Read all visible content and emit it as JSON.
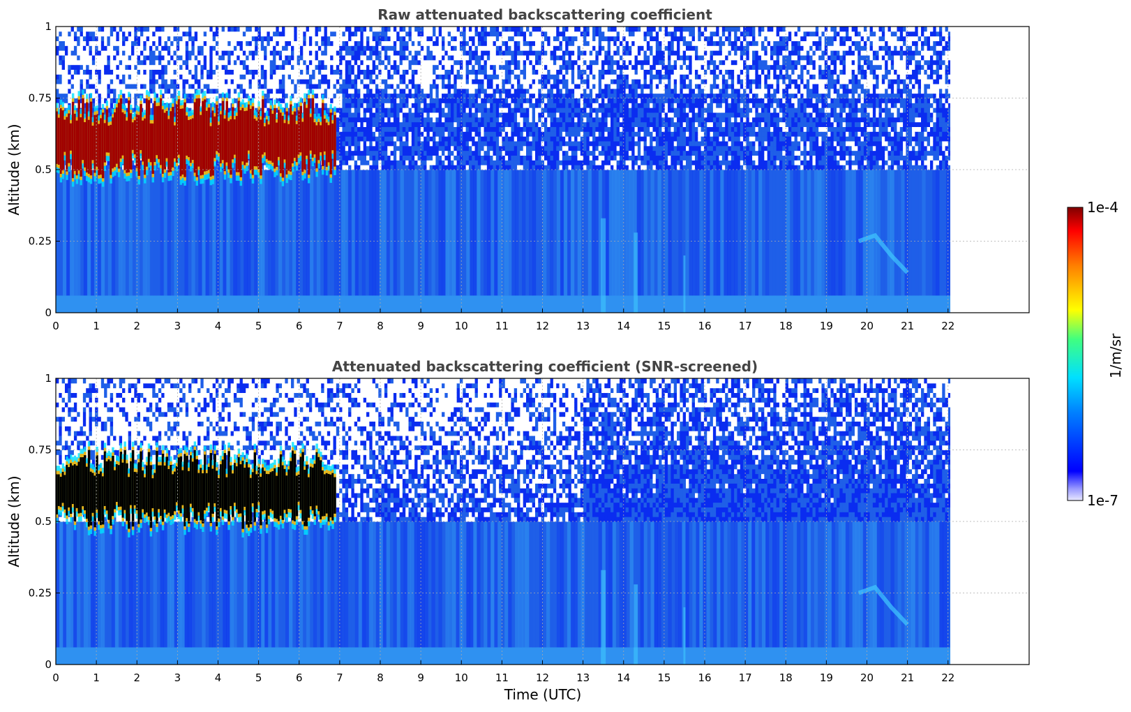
{
  "chart_data": [
    {
      "type": "heatmap",
      "title": "Raw attenuated backscattering coefficient",
      "xlabel": "",
      "ylabel": "Altitude (km)",
      "xlim": [
        0,
        24
      ],
      "ylim": [
        0,
        1
      ],
      "data_end_x": 22.3,
      "x_ticks": [
        "0",
        "1",
        "2",
        "3",
        "4",
        "5",
        "6",
        "7",
        "8",
        "9",
        "10",
        "11",
        "12",
        "13",
        "14",
        "15",
        "16",
        "17",
        "18",
        "19",
        "20",
        "21",
        "22"
      ],
      "y_ticks": [
        "0",
        "0.25",
        "0.5",
        "0.75",
        "1"
      ],
      "grid": true,
      "screened": false,
      "cloud_layer": {
        "x_range": [
          0,
          6.9
        ],
        "base_km": 0.52,
        "top_km": 0.68,
        "colormap_value": "1e-4"
      }
    },
    {
      "type": "heatmap",
      "title": "Attenuated backscattering coefficient (SNR-screened)",
      "xlabel": "Time (UTC)",
      "ylabel": "Altitude (km)",
      "xlim": [
        0,
        24
      ],
      "ylim": [
        0,
        1
      ],
      "data_end_x": 22.3,
      "x_ticks": [
        "0",
        "1",
        "2",
        "3",
        "4",
        "5",
        "6",
        "7",
        "8",
        "9",
        "10",
        "11",
        "12",
        "13",
        "14",
        "15",
        "16",
        "17",
        "18",
        "19",
        "20",
        "21",
        "22"
      ],
      "y_ticks": [
        "0",
        "0.25",
        "0.5",
        "0.75",
        "1"
      ],
      "grid": true,
      "screened": true,
      "cloud_layer": {
        "x_range": [
          0,
          6.9
        ],
        "base_km": 0.52,
        "top_km": 0.68,
        "colormap_value": "saturated (black)"
      }
    }
  ],
  "colorbar": {
    "label": "1/m/sr",
    "max_label": "1e-4",
    "min_label": "1e-7",
    "colormap": "jet",
    "scale": "log"
  },
  "colors": {
    "background_blue": "#1f5fe8",
    "deep_blue": "#0a2cf0",
    "light_blue": "#36a6f5",
    "cloud_red": "#a00000",
    "saturated": "#000000",
    "grid": "#aaaaaa",
    "title": "#444444"
  }
}
